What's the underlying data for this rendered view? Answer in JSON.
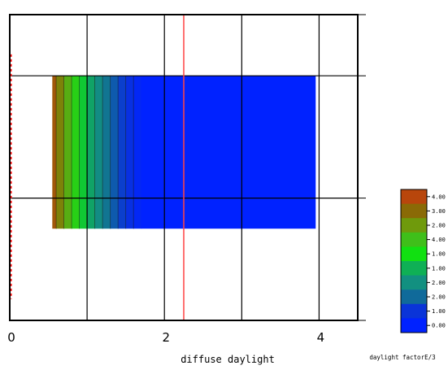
{
  "chart_data": {
    "type": "heatmap",
    "xlabel": "diffuse daylight",
    "ylabel": "",
    "xlim": [
      0,
      4.5
    ],
    "x_ticks": [
      0,
      2,
      4
    ],
    "x_tick_labels": [
      "0",
      "2",
      "4"
    ],
    "grid": true,
    "vertical_gridlines_x": [
      1,
      2,
      3,
      4
    ],
    "horizontal_gridlines_fraction": [
      0.2,
      0.6
    ],
    "reference_line": {
      "x": 2.25,
      "color": "#ff4444"
    },
    "boundary_dashes": {
      "x": 0,
      "color": "#ff0000"
    },
    "region": {
      "x_range": [
        0.55,
        3.95
      ],
      "y_fraction_range": [
        0.2,
        0.7
      ],
      "value_gradient": {
        "x": [
          0.55,
          0.6,
          0.7,
          0.8,
          0.9,
          1.0,
          1.1,
          1.2,
          1.3,
          1.4,
          1.5,
          1.6,
          1.7,
          3.95
        ],
        "values": [
          4.5,
          4.0,
          3.5,
          3.0,
          2.5,
          2.0,
          1.6,
          1.3,
          1.0,
          0.7,
          0.5,
          0.25,
          0.0,
          0.0
        ]
      }
    },
    "legend": {
      "title": "daylight factorE/3",
      "placement": "bottom-right",
      "entries": [
        {
          "label": "4.00",
          "color": "#b8460c"
        },
        {
          "label": "3.00",
          "color": "#8a6a06"
        },
        {
          "label": "2.00",
          "color": "#6f9a0c"
        },
        {
          "label": "4.00",
          "color": "#3fbf1a"
        },
        {
          "label": "1.00",
          "color": "#11e011"
        },
        {
          "label": "1.00",
          "color": "#0fb055"
        },
        {
          "label": "2.00",
          "color": "#129080"
        },
        {
          "label": "2.00",
          "color": "#106a9a"
        },
        {
          "label": "1.00",
          "color": "#0a34d8"
        },
        {
          "label": "0.00",
          "color": "#0022ff"
        }
      ]
    }
  }
}
